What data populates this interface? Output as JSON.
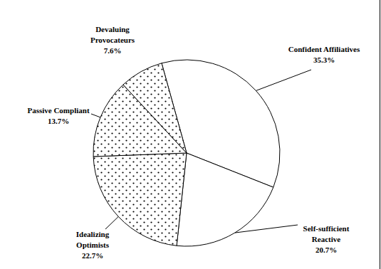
{
  "chart_data": {
    "type": "pie",
    "categories": [
      "Confident Affiliatives",
      "Self-sufficient Reactive",
      "Idealizing Optimists",
      "Passive Compliant",
      "Devaluing Provocateurs"
    ],
    "values": [
      35.3,
      20.7,
      22.7,
      13.7,
      7.6
    ],
    "value_labels": [
      "35.3%",
      "20.7%",
      "22.7%",
      "13.7%",
      "7.6%"
    ],
    "colors": [
      "#ffffff",
      "#ffffff",
      "#000000",
      "#000000",
      "#000000"
    ],
    "data_labels": true
  }
}
